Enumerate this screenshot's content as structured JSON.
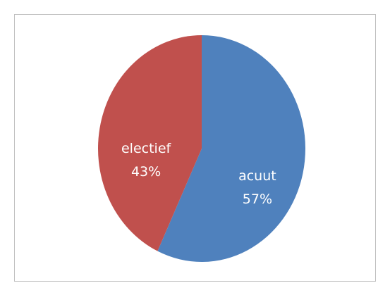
{
  "chart_data": {
    "type": "pie",
    "categories": [
      "acuut",
      "electief"
    ],
    "values": [
      57,
      43
    ],
    "value_labels": [
      "57%",
      "43%"
    ],
    "colors": [
      "#4f81bd",
      "#c0504d"
    ]
  }
}
